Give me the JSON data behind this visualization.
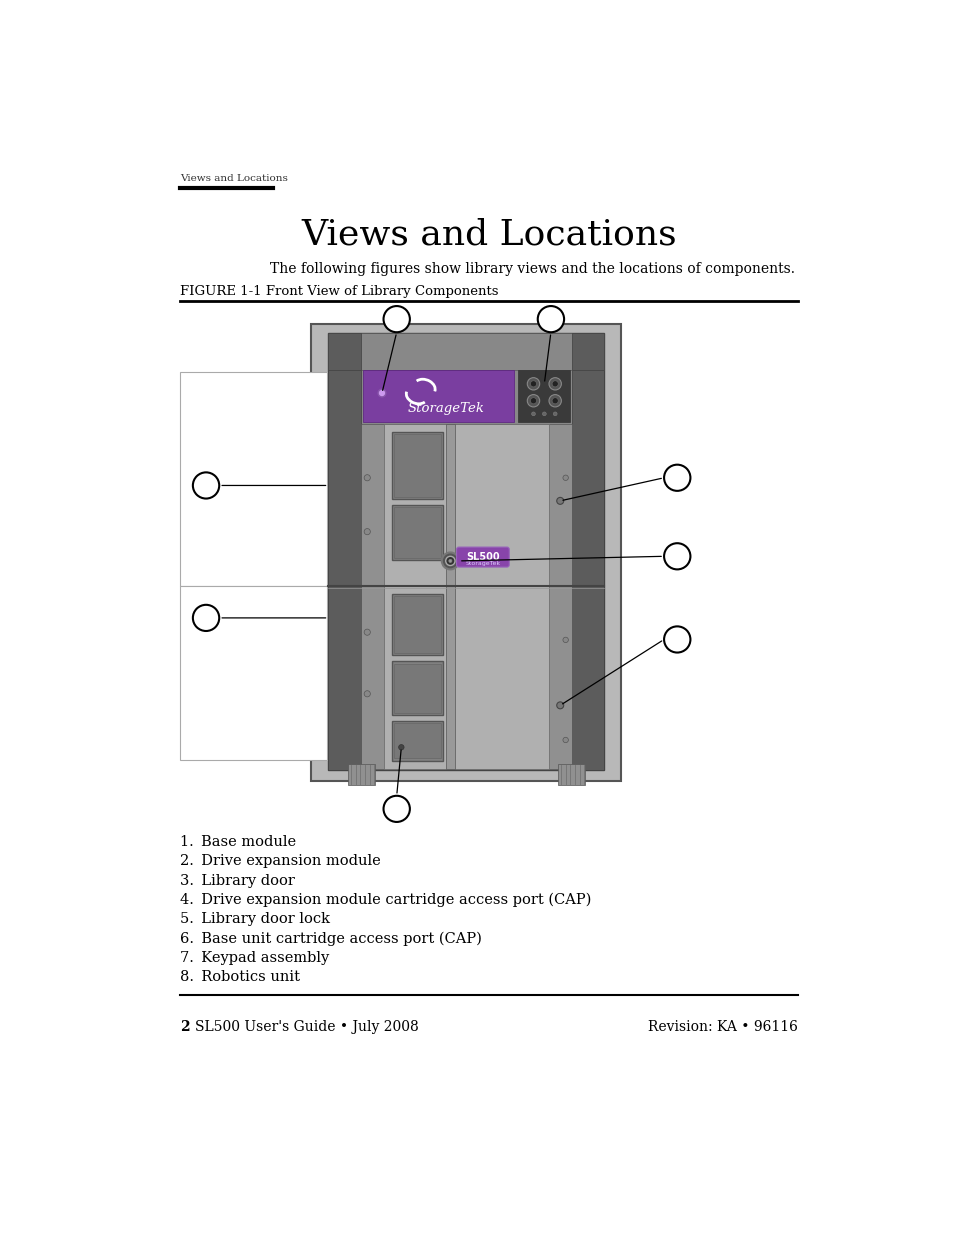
{
  "page_header": "Views and Locations",
  "title": "Views and Locations",
  "subtitle": "The following figures show library views and the locations of components.",
  "figure_label": "FIGURE 1-1 Front View of Library Components",
  "list_items": [
    "1. Base module",
    "2. Drive expansion module",
    "3. Library door",
    "4. Drive expansion module cartridge access port (CAP)",
    "5. Library door lock",
    "6. Base unit cartridge access port (CAP)",
    "7. Keypad assembly",
    "8. Robotics unit"
  ],
  "footer_left": "2   SL500 User’s Guide • July 2008",
  "footer_right": "Revision: KA • 96116",
  "bg_color": "#ffffff",
  "text_color": "#000000",
  "purple_color": "#7a3ea0",
  "outer_cabinet_color": "#b0b0b0",
  "mid_cabinet_color": "#909090",
  "dark_side_color": "#606060",
  "door_center_color": "#a8a8a8",
  "door_panel_color": "#8a8a8a",
  "panel_inner_color": "#7a7a7a",
  "right_door_color": "#6a6a6a",
  "keypad_color": "#383838",
  "top_bar_color": "#686868",
  "separator_color": "#505050"
}
